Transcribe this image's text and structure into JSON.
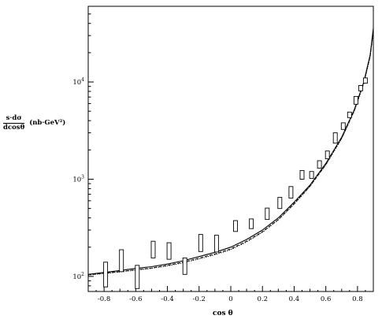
{
  "chart_data": {
    "type": "scatter",
    "ylabel": {
      "numerator": "s·dσ",
      "denominator": "dcosθ",
      "units": "(nb·GeV²)"
    },
    "xlabel": "cos θ",
    "x_ticks": [
      -0.8,
      -0.6,
      -0.4,
      -0.2,
      0,
      0.2,
      0.4,
      0.6,
      0.8
    ],
    "x_tick_labels": [
      "-0.8",
      "-0.6",
      "-0.4",
      "-0.2",
      "0",
      "0.2",
      "0.4",
      "0.6",
      "0.8"
    ],
    "y_scale": "log",
    "y_ticks": [
      100,
      1000,
      10000
    ],
    "y_tick_labels": [
      {
        "base": "10",
        "exp": "2"
      },
      {
        "base": "10",
        "exp": "3"
      },
      {
        "base": "10",
        "exp": "4"
      }
    ],
    "xlim": [
      -0.9,
      0.9
    ],
    "ylim": [
      70,
      60000
    ],
    "grid": false,
    "data_boxes": [
      {
        "x": -0.79,
        "ylow": 78,
        "yhigh": 140
      },
      {
        "x": -0.69,
        "ylow": 112,
        "yhigh": 188
      },
      {
        "x": -0.59,
        "ylow": 75,
        "yhigh": 130
      },
      {
        "x": -0.49,
        "ylow": 155,
        "yhigh": 230
      },
      {
        "x": -0.39,
        "ylow": 150,
        "yhigh": 222
      },
      {
        "x": -0.29,
        "ylow": 105,
        "yhigh": 155
      },
      {
        "x": -0.19,
        "ylow": 180,
        "yhigh": 270
      },
      {
        "x": -0.09,
        "ylow": 178,
        "yhigh": 265
      },
      {
        "x": 0.03,
        "ylow": 290,
        "yhigh": 375
      },
      {
        "x": 0.13,
        "ylow": 310,
        "yhigh": 390
      },
      {
        "x": 0.23,
        "ylow": 385,
        "yhigh": 505
      },
      {
        "x": 0.31,
        "ylow": 500,
        "yhigh": 650
      },
      {
        "x": 0.38,
        "ylow": 640,
        "yhigh": 840
      },
      {
        "x": 0.45,
        "ylow": 1000,
        "yhigh": 1230
      },
      {
        "x": 0.51,
        "ylow": 1020,
        "yhigh": 1200
      },
      {
        "x": 0.56,
        "ylow": 1300,
        "yhigh": 1550
      },
      {
        "x": 0.61,
        "ylow": 1620,
        "yhigh": 1950
      },
      {
        "x": 0.66,
        "ylow": 2350,
        "yhigh": 3000
      },
      {
        "x": 0.71,
        "ylow": 3250,
        "yhigh": 3800
      },
      {
        "x": 0.75,
        "ylow": 4300,
        "yhigh": 4900
      },
      {
        "x": 0.79,
        "ylow": 5900,
        "yhigh": 7100
      },
      {
        "x": 0.82,
        "ylow": 8100,
        "yhigh": 9200
      },
      {
        "x": 0.85,
        "ylow": 9700,
        "yhigh": 11000
      }
    ],
    "curves": [
      {
        "style": "solid",
        "points": [
          [
            -0.9,
            105
          ],
          [
            -0.8,
            110
          ],
          [
            -0.7,
            115
          ],
          [
            -0.6,
            121
          ],
          [
            -0.5,
            126
          ],
          [
            -0.4,
            134
          ],
          [
            -0.3,
            145
          ],
          [
            -0.2,
            160
          ],
          [
            -0.1,
            177
          ],
          [
            0,
            200
          ],
          [
            0.1,
            240
          ],
          [
            0.2,
            300
          ],
          [
            0.3,
            400
          ],
          [
            0.4,
            580
          ],
          [
            0.5,
            870
          ],
          [
            0.6,
            1450
          ],
          [
            0.7,
            2700
          ],
          [
            0.78,
            5200
          ],
          [
            0.84,
            10000
          ],
          [
            0.88,
            19000
          ],
          [
            0.9,
            36000
          ]
        ]
      },
      {
        "style": "dashed",
        "points": [
          [
            -0.9,
            104
          ],
          [
            -0.8,
            108
          ],
          [
            -0.7,
            112
          ],
          [
            -0.6,
            117
          ],
          [
            -0.5,
            122
          ],
          [
            -0.4,
            130
          ],
          [
            -0.3,
            140
          ],
          [
            -0.2,
            154
          ],
          [
            -0.1,
            170
          ],
          [
            0,
            192
          ],
          [
            0.1,
            230
          ],
          [
            0.2,
            288
          ],
          [
            0.3,
            385
          ],
          [
            0.4,
            560
          ],
          [
            0.5,
            850
          ],
          [
            0.6,
            1420
          ],
          [
            0.7,
            2650
          ],
          [
            0.78,
            5100
          ],
          [
            0.84,
            9800
          ],
          [
            0.88,
            18500
          ],
          [
            0.9,
            34000
          ]
        ]
      },
      {
        "style": "dotted",
        "points": [
          [
            -0.9,
            103
          ],
          [
            -0.8,
            107
          ],
          [
            -0.7,
            111
          ],
          [
            -0.6,
            116
          ],
          [
            -0.5,
            121
          ],
          [
            -0.4,
            128
          ],
          [
            -0.3,
            138
          ],
          [
            -0.2,
            151
          ],
          [
            -0.1,
            167
          ],
          [
            0,
            188
          ],
          [
            0.1,
            226
          ],
          [
            0.2,
            284
          ],
          [
            0.3,
            380
          ],
          [
            0.4,
            550
          ],
          [
            0.5,
            840
          ],
          [
            0.6,
            1400
          ],
          [
            0.7,
            2600
          ],
          [
            0.78,
            5000
          ],
          [
            0.84,
            9600
          ],
          [
            0.88,
            18000
          ],
          [
            0.9,
            33000
          ]
        ]
      }
    ]
  }
}
